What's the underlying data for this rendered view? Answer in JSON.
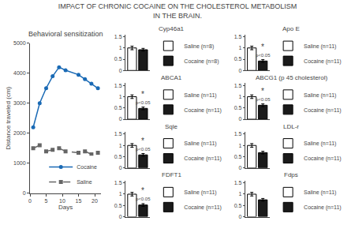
{
  "title": "IMPACT OF CHRONIC COCAINE ON THE CHOLESTEROL METABOLISM\nIN THE BRAIN.",
  "chart_data": [
    {
      "type": "line",
      "title": "Behavioral sensitization",
      "xlabel": "Days",
      "ylabel": "Distance traveled (cm)",
      "x": [
        1,
        3,
        5,
        7,
        9,
        11,
        15,
        17,
        19,
        21
      ],
      "series": [
        {
          "name": "Cocaine",
          "color": "#1a6ab5",
          "marker": "circle",
          "line_style": "solid",
          "values": [
            2200,
            3000,
            3500,
            3900,
            4200,
            4100,
            3950,
            3800,
            3650,
            3500
          ]
        },
        {
          "name": "Saline",
          "color": "#666666",
          "marker": "square",
          "line_style": "dashed",
          "values": [
            1500,
            1600,
            1400,
            1450,
            1500,
            1400,
            1350,
            1400,
            1300,
            1350
          ]
        }
      ],
      "xlim": [
        0,
        22
      ],
      "xticks": [
        0,
        5,
        10,
        15,
        20
      ],
      "ylim": [
        0,
        5000
      ],
      "yticks": [
        0,
        1000,
        2000,
        3000,
        4000,
        5000
      ],
      "grid": false,
      "legend": "lower right"
    },
    {
      "type": "bar",
      "title": "Cyp46a1",
      "categories": [
        null,
        null
      ],
      "series": [
        {
          "name": "Saline (n=8)",
          "color": "#ffffff",
          "values": [
            1.0,
            null
          ],
          "errors": [
            0.08,
            null
          ]
        },
        {
          "name": "Cocaine (n=8)",
          "color": "#1a1a1a",
          "values": [
            null,
            0.92
          ],
          "errors": [
            null,
            0.06
          ]
        }
      ],
      "ylim": [
        0,
        1.6
      ],
      "yticks": [
        0,
        0.5,
        1,
        1.5
      ],
      "tick_labels": "y",
      "grid": false,
      "legend": "right"
    },
    {
      "type": "bar",
      "title": "Apo E",
      "categories": [
        null,
        null
      ],
      "series": [
        {
          "name": "Saline (n=11)",
          "color": "#ffffff",
          "values": [
            1.0,
            null
          ],
          "errors": [
            0.08,
            null
          ]
        },
        {
          "name": "Cocaine (n=11)",
          "color": "#1a1a1a",
          "values": [
            null,
            0.42
          ],
          "errors": [
            null,
            0.06
          ]
        }
      ],
      "annotations": [
        {
          "text": "*"
        },
        {
          "text": "p<0.05"
        }
      ],
      "ylim": [
        0,
        1.6
      ],
      "yticks": [
        0,
        0.5,
        1,
        1.5
      ],
      "tick_labels": "y",
      "grid": false,
      "legend": "right"
    },
    {
      "type": "bar",
      "title": "ABCA1",
      "categories": [
        null,
        null
      ],
      "series": [
        {
          "name": "Saline (n=11)",
          "color": "#ffffff",
          "values": [
            1.0,
            null
          ],
          "errors": [
            0.08,
            null
          ]
        },
        {
          "name": "Cocaine (n=11)",
          "color": "#1a1a1a",
          "values": [
            null,
            0.48
          ],
          "errors": [
            null,
            0.06
          ]
        }
      ],
      "annotations": [
        {
          "text": "*"
        },
        {
          "text": "p<0.05"
        }
      ],
      "ylim": [
        0,
        1.6
      ],
      "yticks": [
        0,
        0.5,
        1,
        1.5
      ],
      "tick_labels": "y",
      "grid": false,
      "legend": "right"
    },
    {
      "type": "bar",
      "title": "ABCG1 (p 45 cholesterol)",
      "categories": [
        null,
        null
      ],
      "series": [
        {
          "name": "Saline (n=11)",
          "color": "#ffffff",
          "values": [
            1.0,
            null
          ],
          "errors": [
            0.08,
            null
          ]
        },
        {
          "name": "Cocaine (n=11)",
          "color": "#1a1a1a",
          "values": [
            null,
            0.62
          ],
          "errors": [
            null,
            0.06
          ]
        }
      ],
      "annotations": [
        {
          "text": "*"
        },
        {
          "text": "p<0.05"
        }
      ],
      "ylim": [
        0,
        1.6
      ],
      "yticks": [
        0,
        0.5,
        1,
        1.5
      ],
      "tick_labels": "y",
      "grid": false,
      "legend": "right"
    },
    {
      "type": "bar",
      "title": "Sqle",
      "categories": [
        null,
        null
      ],
      "series": [
        {
          "name": "Saline (n=11)",
          "color": "#ffffff",
          "values": [
            1.0,
            null
          ],
          "errors": [
            0.08,
            null
          ]
        },
        {
          "name": "Cocaine (n=11)",
          "color": "#1a1a1a",
          "values": [
            null,
            0.58
          ],
          "errors": [
            null,
            0.06
          ]
        }
      ],
      "annotations": [
        {
          "text": "*"
        },
        {
          "text": "p<0.05"
        }
      ],
      "ylim": [
        0,
        1.6
      ],
      "yticks": [
        0,
        0.5,
        1,
        1.5
      ],
      "tick_labels": "y",
      "grid": false,
      "legend": "right"
    },
    {
      "type": "bar",
      "title": "LDL-r",
      "categories": [
        null,
        null
      ],
      "series": [
        {
          "name": "Saline (n=11)",
          "color": "#ffffff",
          "values": [
            1.0,
            null
          ],
          "errors": [
            0.08,
            null
          ]
        },
        {
          "name": "Cocaine (n=11)",
          "color": "#1a1a1a",
          "values": [
            null,
            0.68
          ],
          "errors": [
            null,
            0.06
          ]
        }
      ],
      "ylim": [
        0,
        1.6
      ],
      "yticks": [
        0,
        0.5,
        1,
        1.5
      ],
      "tick_labels": "y",
      "grid": false,
      "legend": "right"
    },
    {
      "type": "bar",
      "title": "FDFT1",
      "categories": [
        null,
        null
      ],
      "series": [
        {
          "name": "Saline (n=11)",
          "color": "#ffffff",
          "values": [
            1.0,
            null
          ],
          "errors": [
            0.08,
            null
          ]
        },
        {
          "name": "Cocaine (n=11)",
          "color": "#1a1a1a",
          "values": [
            null,
            0.52
          ],
          "errors": [
            null,
            0.06
          ]
        }
      ],
      "annotations": [
        {
          "text": "*"
        },
        {
          "text": "p<0.05"
        }
      ],
      "ylim": [
        0,
        1.6
      ],
      "yticks": [
        0,
        0.5,
        1,
        1.5
      ],
      "tick_labels": "y",
      "grid": false,
      "legend": "right"
    },
    {
      "type": "bar",
      "title": "Fdps",
      "categories": [
        null,
        null
      ],
      "series": [
        {
          "name": "Saline (n=11)",
          "color": "#ffffff",
          "values": [
            1.0,
            null
          ],
          "errors": [
            0.08,
            null
          ]
        },
        {
          "name": "Cocaine (n=11)",
          "color": "#1a1a1a",
          "values": [
            null,
            0.75
          ],
          "errors": [
            null,
            0.06
          ]
        }
      ],
      "ylim": [
        0,
        1.6
      ],
      "yticks": [
        0,
        0.5,
        1,
        1.5
      ],
      "tick_labels": "y",
      "grid": false,
      "legend": "right"
    }
  ]
}
